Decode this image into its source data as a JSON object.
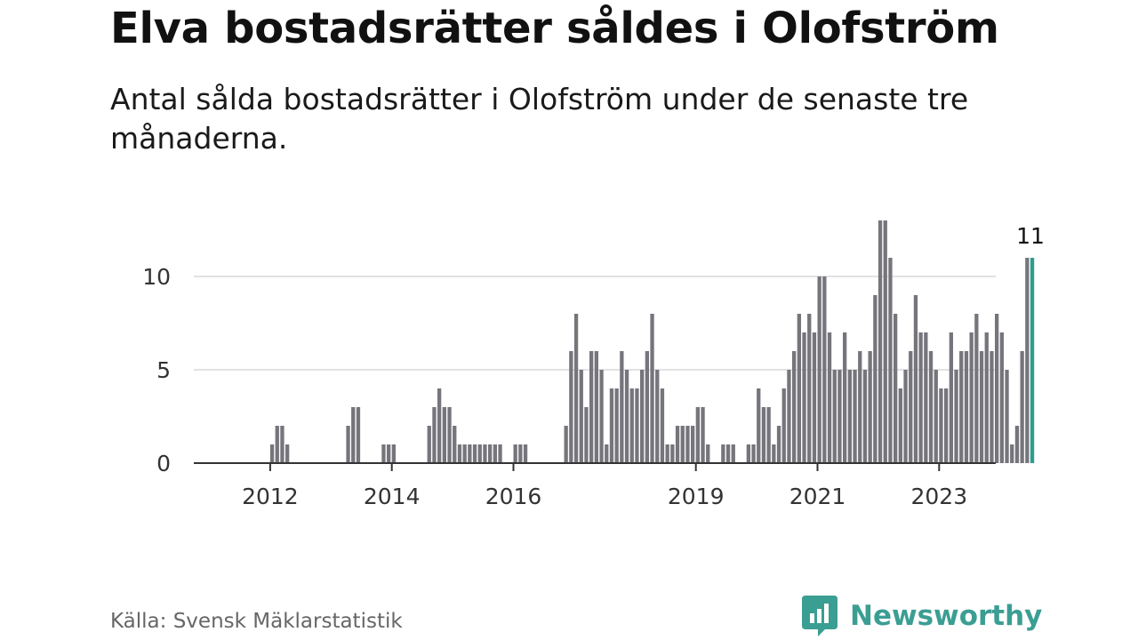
{
  "title": "Elva bostadsrätter såldes i Olofström",
  "subtitle": "Antal sålda bostadsrätter i Olofström under de senaste tre månaderna.",
  "source": "Källa: Svensk Mäklarstatistik",
  "brand": {
    "name": "Newsworthy",
    "icon": "newsworthy-logo-icon",
    "color": "#3b9e93"
  },
  "chart_data": {
    "type": "bar",
    "title": "Elva bostadsrätter såldes i Olofström",
    "xlabel": "",
    "ylabel": "",
    "ylim": [
      0,
      13
    ],
    "yticks": [
      0,
      5,
      10
    ],
    "xtick_labels": [
      "2012",
      "2014",
      "2016",
      "2019",
      "2021",
      "2023"
    ],
    "grid": true,
    "legend": "none",
    "bar_color": "#76757c",
    "highlight_color": "#2a9d8f",
    "x_start": "2011-06",
    "x_end": "2023-10",
    "values": [
      0,
      0,
      0,
      0,
      0,
      0,
      0,
      1,
      2,
      2,
      1,
      0,
      0,
      0,
      0,
      0,
      0,
      0,
      0,
      0,
      0,
      0,
      2,
      3,
      3,
      0,
      0,
      0,
      0,
      1,
      1,
      1,
      0,
      0,
      0,
      0,
      0,
      0,
      2,
      3,
      4,
      3,
      3,
      2,
      1,
      1,
      1,
      1,
      1,
      1,
      1,
      1,
      1,
      0,
      0,
      1,
      1,
      1,
      0,
      0,
      0,
      0,
      0,
      0,
      0,
      2,
      6,
      8,
      5,
      3,
      6,
      6,
      5,
      1,
      4,
      4,
      6,
      5,
      4,
      4,
      5,
      6,
      8,
      5,
      4,
      1,
      1,
      2,
      2,
      2,
      2,
      3,
      3,
      1,
      0,
      0,
      1,
      1,
      1,
      0,
      0,
      1,
      1,
      4,
      3,
      3,
      1,
      2,
      4,
      5,
      6,
      8,
      7,
      8,
      7,
      10,
      10,
      7,
      5,
      5,
      7,
      5,
      5,
      6,
      5,
      6,
      9,
      13,
      13,
      11,
      8,
      4,
      5,
      6,
      9,
      7,
      7,
      6,
      5,
      4,
      4,
      7,
      5,
      6,
      6,
      7,
      8,
      6,
      7,
      6,
      8,
      7,
      5,
      1,
      2,
      6,
      11,
      11
    ],
    "highlight_last": 1,
    "annotation": {
      "label": "11",
      "target": "last"
    }
  }
}
